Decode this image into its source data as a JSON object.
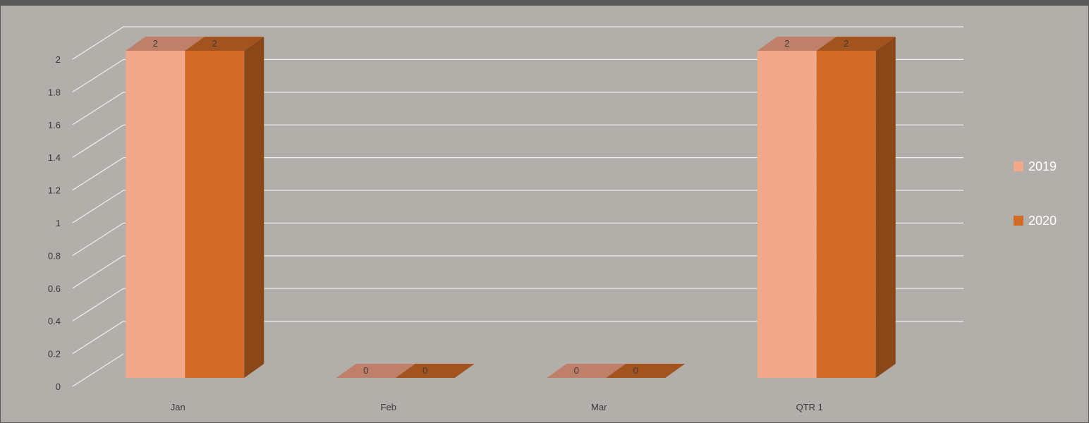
{
  "chart_data": {
    "type": "bar",
    "categories": [
      "Jan",
      "Feb",
      "Mar",
      "QTR 1"
    ],
    "series": [
      {
        "name": "2019",
        "values": [
          2,
          0,
          0,
          2
        ],
        "color": "#f2a98b",
        "top_color": "#bf8069",
        "side_color": "#b87a64"
      },
      {
        "name": "2020",
        "values": [
          2,
          0,
          0,
          2
        ],
        "color": "#d26b27",
        "top_color": "#a3541e",
        "side_color": "#8a4718"
      }
    ],
    "data_labels": true,
    "ylim": [
      0,
      2
    ],
    "yticks": [
      "0",
      "0.2",
      "0.4",
      "0.6",
      "0.8",
      "1",
      "1.2",
      "1.4",
      "1.6",
      "1.8",
      "2"
    ],
    "grid": true,
    "legend_position": "right",
    "three_d": true,
    "colors": {
      "background": "#b2aeaa",
      "gridline": "#f0f0f0",
      "frame": "#595959"
    }
  }
}
